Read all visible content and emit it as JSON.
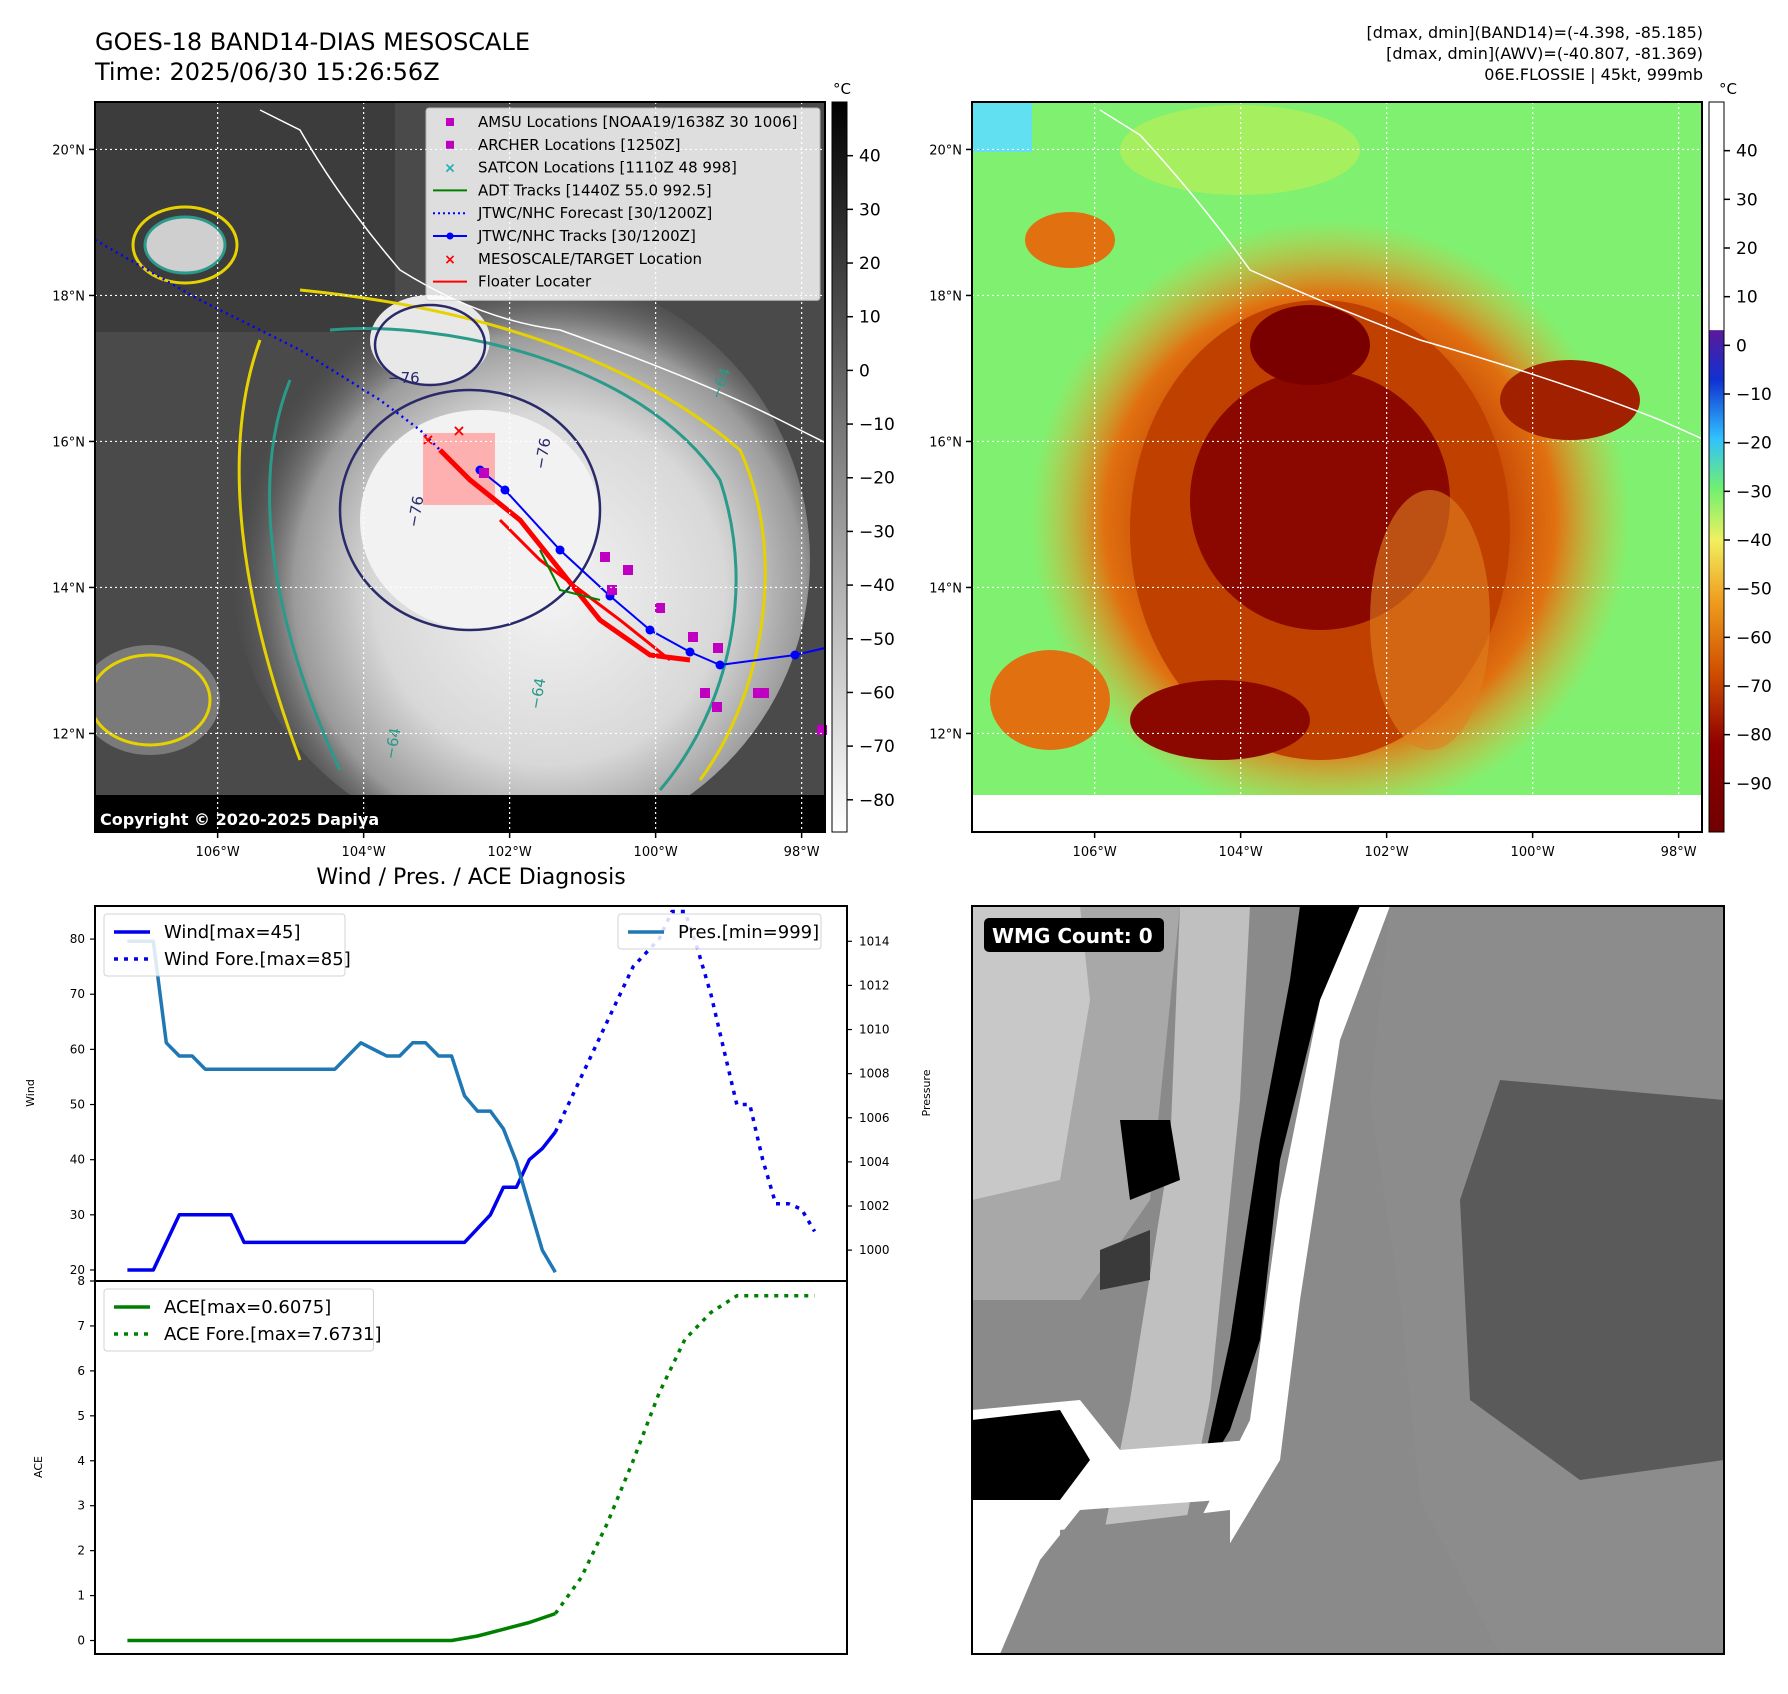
{
  "header": {
    "title_line1": "GOES-18 BAND14-DIAS MESOSCALE",
    "title_line2": "Time: 2025/06/30 15:26:56Z",
    "info_line1": "[dmax, dmin](BAND14)=(-4.398, -85.185)",
    "info_line2": "[dmax, dmin](AWV)=(-40.807, -81.369)",
    "info_line3": "06E.FLOSSIE | 45kt, 999mb"
  },
  "map_ir": {
    "copyright": "Copyright © 2020-2025 Dapiya",
    "contour_labels": [
      "−76",
      "−76",
      "−76",
      "−64",
      "−64",
      "−64"
    ],
    "lon_ticks": [
      "106°W",
      "104°W",
      "102°W",
      "100°W",
      "98°W"
    ],
    "lat_ticks": [
      "20°N",
      "18°N",
      "16°N",
      "14°N",
      "12°N"
    ],
    "colorbar": {
      "unit": "°C",
      "ticks": [
        "40",
        "30",
        "20",
        "10",
        "0",
        "−10",
        "−20",
        "−30",
        "−40",
        "−50",
        "−60",
        "−70",
        "−80"
      ]
    },
    "legend": [
      {
        "label": "AMSU Locations [NOAA19/1638Z 30 1006]",
        "color": "#c000c0",
        "marker": "square"
      },
      {
        "label": "ARCHER Locations [1250Z]",
        "color": "#c000c0",
        "marker": "square"
      },
      {
        "label": "SATCON Locations [1110Z 48 998]",
        "color": "#20b0b0",
        "marker": "x"
      },
      {
        "label": "ADT Tracks [1440Z 55.0 992.5]",
        "color": "#008000",
        "marker": "line"
      },
      {
        "label": "JTWC/NHC Forecast [30/1200Z]",
        "color": "#0000ff",
        "marker": "dotted"
      },
      {
        "label": "JTWC/NHC Tracks [30/1200Z]",
        "color": "#0000ff",
        "marker": "line-dot"
      },
      {
        "label": "MESOSCALE/TARGET Location",
        "color": "#ff0000",
        "marker": "x"
      },
      {
        "label": "Floater Locater",
        "color": "#ff0000",
        "marker": "line"
      }
    ]
  },
  "map_awv": {
    "lon_ticks": [
      "106°W",
      "104°W",
      "102°W",
      "100°W",
      "98°W"
    ],
    "lat_ticks": [
      "20°N",
      "18°N",
      "16°N",
      "14°N",
      "12°N"
    ],
    "colorbar": {
      "unit": "°C",
      "ticks": [
        "40",
        "30",
        "20",
        "10",
        "0",
        "−10",
        "−20",
        "−30",
        "−40",
        "−50",
        "−60",
        "−70",
        "−80",
        "−90"
      ]
    }
  },
  "wmg": {
    "label": "WMG Count: 0"
  },
  "chart_data": [
    {
      "type": "line",
      "title": "Wind / Pres. / ACE Diagnosis",
      "ylabel": "Wind",
      "ylim": [
        18,
        86
      ],
      "yticks": [
        20,
        30,
        40,
        50,
        60,
        70,
        80
      ],
      "y2label": "Pressure",
      "y2lim": [
        998.6,
        1015.6
      ],
      "y2ticks": [
        1000,
        1002,
        1004,
        1006,
        1008,
        1010,
        1012,
        1014
      ],
      "xlim": [
        -2.5,
        55.5
      ],
      "legend_left": [
        "Wind[max=45]",
        "Wind Fore.[max=85]"
      ],
      "legend_right": [
        "Pres.[min=999]"
      ],
      "series": [
        {
          "name": "Wind[max=45]",
          "color": "#0000ee",
          "style": "solid",
          "x": [
            0,
            2,
            4,
            8,
            9,
            10,
            12,
            13,
            14,
            17,
            20,
            23,
            26,
            28,
            29,
            30,
            31,
            32,
            33
          ],
          "y": [
            20,
            20,
            30,
            30,
            25,
            25,
            25,
            25,
            25,
            25,
            25,
            25,
            25,
            30,
            35,
            35,
            40,
            42,
            45
          ]
        },
        {
          "name": "Wind Fore.[max=85]",
          "color": "#0000ee",
          "style": "dotted",
          "x": [
            33,
            35,
            37,
            39,
            41,
            42,
            43,
            44,
            45,
            46,
            47,
            48,
            49,
            50,
            51,
            52,
            53
          ],
          "y": [
            45,
            55,
            65,
            75,
            80,
            85,
            85,
            78,
            70,
            60,
            50,
            50,
            40,
            32,
            32,
            31,
            27
          ]
        },
        {
          "name": "Pres.[min=999]",
          "color": "#1f77b4",
          "style": "solid",
          "axis": "right",
          "x": [
            0,
            1,
            2,
            3,
            4,
            5,
            6,
            7,
            8,
            9,
            10,
            12,
            14,
            16,
            18,
            20,
            21,
            22,
            23,
            24,
            25,
            26,
            27,
            28,
            29,
            30,
            31,
            32,
            33
          ],
          "y": [
            1014.0,
            1014.0,
            1014.0,
            1009.4,
            1008.8,
            1008.8,
            1008.2,
            1008.2,
            1008.2,
            1008.2,
            1008.2,
            1008.2,
            1008.2,
            1008.2,
            1009.4,
            1008.8,
            1008.8,
            1009.4,
            1009.4,
            1008.8,
            1008.8,
            1007.0,
            1006.3,
            1006.3,
            1005.5,
            1004.0,
            1002.0,
            1000.0,
            999.0
          ]
        }
      ]
    },
    {
      "type": "line",
      "ylabel": "ACE",
      "ylim": [
        -0.3,
        8.0
      ],
      "yticks": [
        0,
        1,
        2,
        3,
        4,
        5,
        6,
        7,
        8
      ],
      "xlim": [
        -2.5,
        55.5
      ],
      "legend": [
        "ACE[max=0.6075]",
        "ACE Fore.[max=7.6731]"
      ],
      "series": [
        {
          "name": "ACE[max=0.6075]",
          "color": "#008000",
          "style": "solid",
          "x": [
            0,
            5,
            10,
            15,
            20,
            25,
            27,
            29,
            31,
            33
          ],
          "y": [
            0,
            0,
            0,
            0,
            0,
            0,
            0.1,
            0.25,
            0.4,
            0.6
          ]
        },
        {
          "name": "ACE Fore.[max=7.6731]",
          "color": "#008000",
          "style": "dotted",
          "x": [
            33,
            35,
            37,
            39,
            41,
            43,
            45,
            47,
            49,
            51,
            53
          ],
          "y": [
            0.6,
            1.4,
            2.6,
            4.0,
            5.5,
            6.7,
            7.3,
            7.67,
            7.67,
            7.67,
            7.67
          ]
        }
      ]
    }
  ]
}
